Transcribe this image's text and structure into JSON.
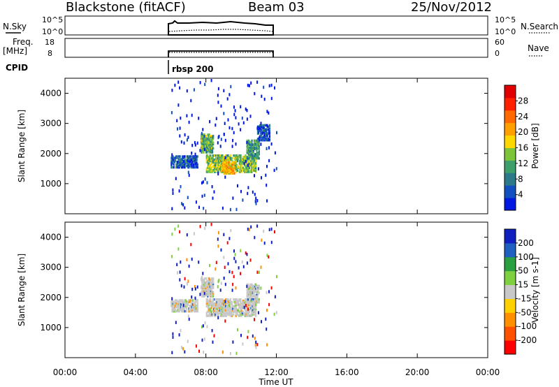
{
  "header": {
    "station": "Blackstone (fitACF)",
    "beam": "Beam 03",
    "date": "25/Nov/2012"
  },
  "top_panels": {
    "nsky_label": "N.Sky",
    "nsky_ticks": [
      "10^5",
      "10^0"
    ],
    "nsky_right_ticks": [
      "10^5",
      "10^0"
    ],
    "nsearch_label": "N.Search",
    "freq_label": "Freq.",
    "freq_unit": "[MHz]",
    "freq_ticks": [
      "18",
      "8"
    ],
    "nave_label": "Nave",
    "nave_ticks": [
      "60",
      "0"
    ],
    "cpid_label": "CPID",
    "cpid_value": "rbsp 200"
  },
  "colors": {
    "power": [
      "#0018e0",
      "#1050c0",
      "#2a7a8a",
      "#3f9f6a",
      "#7cc43a",
      "#ffd700",
      "#ffa000",
      "#ff6a00",
      "#ff2000",
      "#e00000"
    ],
    "velocity": [
      "#ff0000",
      "#ff5000",
      "#ff9000",
      "#ffd000",
      "#c8c8c8",
      "#7ed040",
      "#2aa040",
      "#2060c0",
      "#1020c0"
    ]
  },
  "chart_data": [
    {
      "type": "heatmap",
      "name": "power",
      "ylabel": "Slant Range [km]",
      "ylim": [
        0,
        4500
      ],
      "yticks": [
        "1000",
        "2000",
        "3000",
        "4000"
      ],
      "xlim": [
        0,
        24
      ],
      "colorbar_label": "Power [dB]",
      "colorbar_ticks": [
        "4",
        "8",
        "12",
        "16",
        "20",
        "24",
        "28"
      ],
      "colorbar_range": [
        0,
        32
      ],
      "regions": [
        {
          "t": [
            8.0,
            10.8
          ],
          "r": [
            1350,
            1900
          ],
          "level": 14
        },
        {
          "t": [
            8.9,
            9.6
          ],
          "r": [
            1300,
            1700
          ],
          "level": 20
        },
        {
          "t": [
            7.7,
            8.4
          ],
          "r": [
            2000,
            2600
          ],
          "level": 12
        },
        {
          "t": [
            10.3,
            11.0
          ],
          "r": [
            1800,
            2400
          ],
          "level": 10
        },
        {
          "t": [
            6.0,
            7.5
          ],
          "r": [
            1500,
            1900
          ],
          "level": 5
        },
        {
          "t": [
            10.9,
            11.6
          ],
          "r": [
            2400,
            2900
          ],
          "level": 5
        }
      ]
    },
    {
      "type": "heatmap",
      "name": "velocity",
      "ylabel": "Slant Range [km]",
      "ylim": [
        0,
        4500
      ],
      "yticks": [
        "1000",
        "2000",
        "3000",
        "4000"
      ],
      "xlim": [
        0,
        24
      ],
      "colorbar_label": "Velocity [m s-1]",
      "colorbar_ticks": [
        "-200",
        "-100",
        "-50",
        "-15",
        "15",
        "50",
        "100",
        "200"
      ],
      "colorbar_range": [
        -250,
        250
      ],
      "regions": [
        {
          "t": [
            8.0,
            10.8
          ],
          "r": [
            1350,
            1900
          ],
          "level": 0
        },
        {
          "t": [
            7.7,
            8.4
          ],
          "r": [
            2000,
            2600
          ],
          "level": 0
        },
        {
          "t": [
            10.3,
            11.0
          ],
          "r": [
            1800,
            2400
          ],
          "level": 0
        },
        {
          "t": [
            6.0,
            7.5
          ],
          "r": [
            1500,
            1900
          ],
          "level": 0
        }
      ]
    }
  ],
  "xaxis": {
    "label": "Time UT",
    "ticks": [
      "00:00",
      "04:00",
      "08:00",
      "12:00",
      "16:00",
      "20:00",
      "00:00"
    ],
    "ticks_hours": [
      0,
      4,
      8,
      12,
      16,
      20,
      24
    ]
  }
}
